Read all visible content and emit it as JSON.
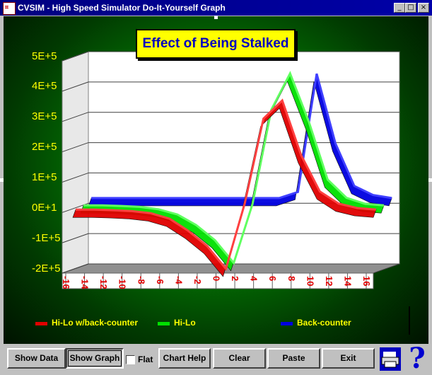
{
  "window": {
    "title": "CVSIM - High Speed Simulator Do-It-Yourself Graph",
    "icon_name": "app-graph-icon",
    "controls": [
      "minimize-icon",
      "maximize-icon",
      "close-icon"
    ]
  },
  "chart_data": {
    "type": "line",
    "title": "Effect of Being Stalked",
    "ylim": [
      -200000,
      500000
    ],
    "y_ticks": [
      "5E+5",
      "4E+5",
      "3E+5",
      "2E+5",
      "1E+5",
      "0E+1",
      "-1E+5",
      "-2E+5"
    ],
    "x": [
      -16,
      -14,
      -12,
      -10,
      -8,
      -6,
      -4,
      -2,
      0,
      2,
      4,
      6,
      8,
      10,
      12,
      14,
      16
    ],
    "x_tick_labels": [
      "-16",
      "-14",
      "-12",
      "-10",
      "-8",
      "-6",
      "-4",
      "-2",
      "0",
      "2",
      "4",
      "6",
      "8",
      "10",
      "12",
      "14",
      "16"
    ],
    "series": [
      {
        "name": "Hi-Lo w/back-counter",
        "color": "#e00000",
        "values": [
          0,
          0,
          -2000,
          -5000,
          -12000,
          -30000,
          -70000,
          -120000,
          -195000,
          20000,
          300000,
          360000,
          180000,
          60000,
          20000,
          5000,
          0
        ]
      },
      {
        "name": "Hi-Lo",
        "color": "#00e000",
        "values": [
          5000,
          5000,
          3000,
          0,
          -8000,
          -25000,
          -60000,
          -110000,
          -185000,
          10000,
          320000,
          440000,
          280000,
          90000,
          30000,
          10000,
          5000
        ]
      },
      {
        "name": "Back-counter",
        "color": "#0000e0",
        "values": [
          20000,
          20000,
          20000,
          20000,
          20000,
          20000,
          20000,
          20000,
          20000,
          20000,
          20000,
          40000,
          430000,
          200000,
          60000,
          30000,
          20000
        ]
      }
    ],
    "legend_position": "bottom",
    "grid": true
  },
  "toolbar": {
    "show_data": "Show Data",
    "show_graph": "Show Graph",
    "flat_label": "Flat",
    "flat_checked": false,
    "chart_help": "Chart Help",
    "clear": "Clear",
    "paste": "Paste",
    "exit": "Exit"
  }
}
